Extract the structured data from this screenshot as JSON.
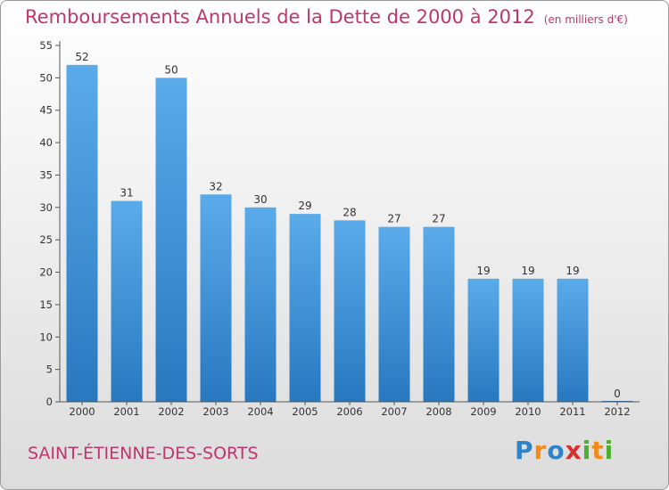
{
  "header": {
    "title": "Remboursements Annuels de la Dette de 2000 à 2012",
    "subtitle": "(en milliers d'€)"
  },
  "footer": {
    "commune": "SAINT-ÉTIENNE-DES-SORTS",
    "logo_letters": [
      {
        "char": "P",
        "color": "#2e84c8"
      },
      {
        "char": "r",
        "color": "#f28a1a"
      },
      {
        "char": "o",
        "color": "#2e84c8"
      },
      {
        "char": "x",
        "color": "#d72f2f"
      },
      {
        "char": "i",
        "color": "#4caf32"
      },
      {
        "char": "t",
        "color": "#f28a1a"
      },
      {
        "char": "i",
        "color": "#4caf32"
      }
    ]
  },
  "colors": {
    "accent": "#c0356e",
    "bar_top": "#5aabea",
    "bar_bottom": "#2878c0"
  },
  "chart_data": {
    "type": "bar",
    "categories": [
      "2000",
      "2001",
      "2002",
      "2003",
      "2004",
      "2005",
      "2006",
      "2007",
      "2008",
      "2009",
      "2010",
      "2011",
      "2012"
    ],
    "values": [
      52,
      31,
      50,
      32,
      30,
      29,
      28,
      27,
      27,
      19,
      19,
      19,
      0
    ],
    "ylim": [
      0,
      55
    ],
    "yticks": [
      0,
      5,
      10,
      15,
      20,
      25,
      30,
      35,
      40,
      45,
      50,
      55
    ],
    "grid": false,
    "legend": "none"
  }
}
